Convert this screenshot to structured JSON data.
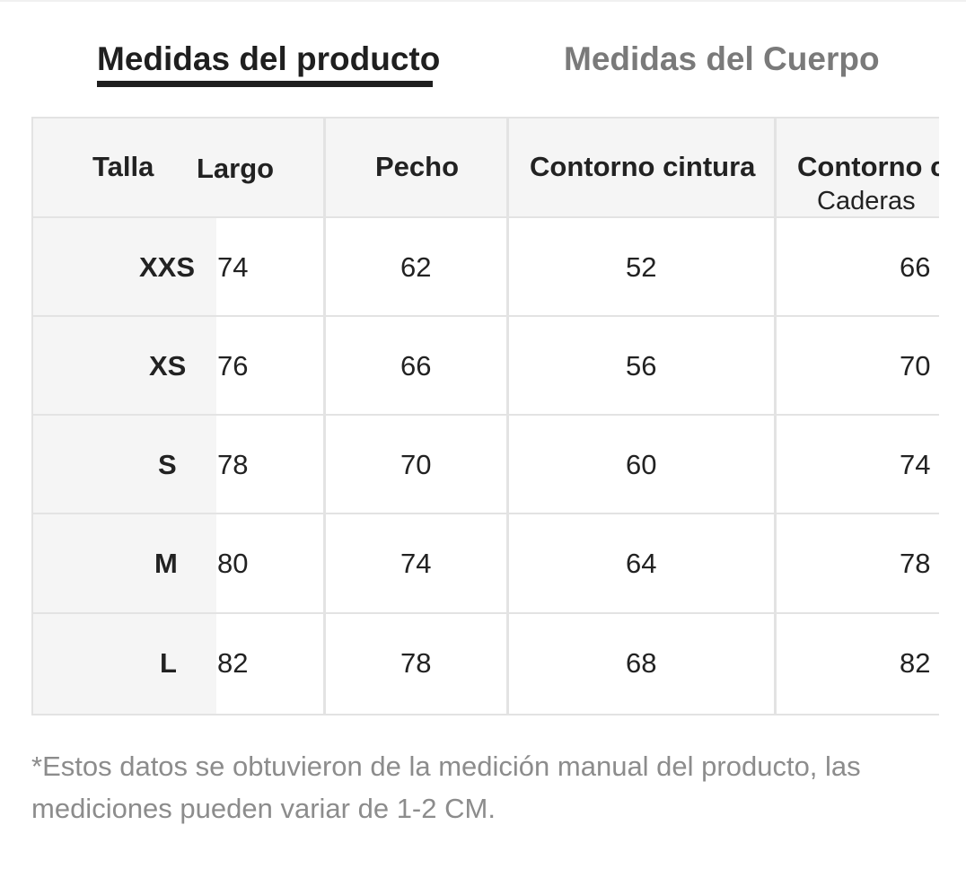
{
  "tabs": {
    "active_label": "Medidas del producto",
    "inactive_label": "Medidas del Cuerpo"
  },
  "table": {
    "headers": {
      "talla": "Talla",
      "largo": "Largo",
      "pecho": "Pecho",
      "cintura": "Contorno cintura",
      "caderas_line1": "Contorno c",
      "caderas_line2": "Caderas"
    },
    "rows": [
      {
        "talla": "XXS",
        "largo": "74",
        "pecho": "62",
        "cintura": "52",
        "caderas": "66"
      },
      {
        "talla": "XS",
        "largo": "76",
        "pecho": "66",
        "cintura": "56",
        "caderas": "70"
      },
      {
        "talla": "S",
        "largo": "78",
        "pecho": "70",
        "cintura": "60",
        "caderas": "74"
      },
      {
        "talla": "M",
        "largo": "80",
        "pecho": "74",
        "cintura": "64",
        "caderas": "78"
      },
      {
        "talla": "L",
        "largo": "82",
        "pecho": "78",
        "cintura": "68",
        "caderas": "82"
      }
    ]
  },
  "footnote": "*Estos datos se obtuvieron de la medición manual del producto, las mediciones pueden variar de 1-2 CM.",
  "colors": {
    "active_tab": "#1f1f1f",
    "inactive_tab": "#7a7a7a",
    "grid": "#e3e3e3",
    "header_bg": "#f5f5f5",
    "footnote": "#8c8c8c"
  }
}
